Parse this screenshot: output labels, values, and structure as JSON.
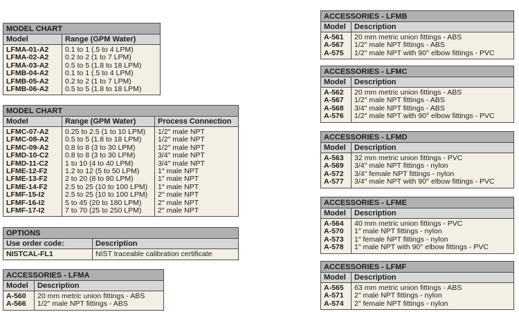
{
  "colors": {
    "title_band": "#b0b0b0",
    "header_band": "#d7d7d7",
    "body_bg": "#f4efe4",
    "border": "#4c4c4c",
    "text": "#1c1c1c",
    "page_bg": "#ffffff"
  },
  "tables": {
    "model_chart_1": {
      "title": "MODEL CHART",
      "headers": [
        "Model",
        "Range (GPM Water)"
      ],
      "rows": [
        [
          "LFMA-01-A2",
          "0.1 to 1 (.5 to 4 LPM)"
        ],
        [
          "LFMA-02-A2",
          "0.2 to 2 (1 to 7 LPM)"
        ],
        [
          "LFMA-03-A2",
          "0.5 to 5 (1.8 to 18 LPM)"
        ],
        [
          "LFMB-04-A2",
          "0.1 to 1 (.5 to 4 LPM)"
        ],
        [
          "LFMB-05-A2",
          "0.2 to 2 (1 to 7 LPM)"
        ],
        [
          "LFMB-06-A2",
          "0.5 to 5 (1.8 to 18 LPM)"
        ]
      ]
    },
    "model_chart_2": {
      "title": "MODEL CHART",
      "headers": [
        "Model",
        "Range (GPM Water)",
        "Process Connection"
      ],
      "rows": [
        [
          "LFMC-07-A2",
          "0.25 to 2.5 (1 to 10 LPM)",
          "1/2″ male NPT"
        ],
        [
          "LFMC-08-A2",
          "0.5 to 5 (1.8 to 18 LPM)",
          "1/2″ male NPT"
        ],
        [
          "LFMC-09-A2",
          "0.8 to 8 (3 to 30 LPM)",
          "1/2″ male NPT"
        ],
        [
          "LFMD-10-C2",
          "0.8 to 8 (3 to 30 LPM)",
          "3/4″ male NPT"
        ],
        [
          "LFMD-11-C2",
          "1 to 10 (4 to 40 LPM)",
          "3/4″ male NPT"
        ],
        [
          "LFME-12-F2",
          "1.2 to 12 (5 to 50 LPM)",
          "1″ male NPT"
        ],
        [
          "LFME-13-F2",
          "2 to 20 (8 to 80 LPM)",
          "1″ male NPT"
        ],
        [
          "LFME-14-F2",
          "2.5 to 25 (10 to 100 LPM)",
          "1″ male NPT"
        ],
        [
          "LFMF-15-I2",
          "2.5 to 25 (10 to 100 LPM)",
          "2″ male NPT"
        ],
        [
          "LFMF-16-I2",
          "5 to 45 (20 to 180 LPM)",
          "2″ male NPT"
        ],
        [
          "LFMF-17-I2",
          "7 to 70 (25 to 250 LPM)",
          "2″ male NPT"
        ]
      ]
    },
    "options": {
      "title": "OPTIONS",
      "headers": [
        "Use order code:",
        "Description"
      ],
      "rows": [
        [
          "NISTCAL-FL1",
          "NIST traceable calibration certificate"
        ]
      ]
    },
    "accessories_lfma": {
      "title": "ACCESSORIES - LFMA",
      "headers": [
        "Model",
        "Description"
      ],
      "rows": [
        [
          "A-560",
          "20 mm metric union fittings - ABS"
        ],
        [
          "A-566",
          "1/2″ male NPT fittings - ABS"
        ]
      ]
    },
    "accessories_lfmb": {
      "title": "ACCESSORIES - LFMB",
      "headers": [
        "Model",
        "Description"
      ],
      "rows": [
        [
          "A-561",
          "20 mm metric union fittings - ABS"
        ],
        [
          "A-567",
          "1/2″ male NPT fittings - ABS"
        ],
        [
          "A-575",
          "1/2″ male NPT with 90° elbow fittings - PVC"
        ]
      ]
    },
    "accessories_lfmc": {
      "title": "ACCESSORIES - LFMC",
      "headers": [
        "Model",
        "Description"
      ],
      "rows": [
        [
          "A-562",
          "20 mm metric union fittings - ABS"
        ],
        [
          "A-567",
          "1/2″ male NPT fittings - ABS"
        ],
        [
          "A-568",
          "3/4″ male NPT fittings - ABS"
        ],
        [
          "A-576",
          "1/2″ male NPT with 90° elbow fittings - PVC"
        ]
      ]
    },
    "accessories_lfmd": {
      "title": "ACCESSORIES - LFMD",
      "headers": [
        "Model",
        "Description"
      ],
      "rows": [
        [
          "A-563",
          "32 mm metric union fittings - PVC"
        ],
        [
          "A-569",
          "3/4″ male NPT fittings - nylon"
        ],
        [
          "A-572",
          "3/4″ female NPT fittings - nylon"
        ],
        [
          "A-577",
          "3/4″ male NPT with 90° elbow fittings - PVC"
        ]
      ]
    },
    "accessories_lfme": {
      "title": "ACCESSORIES - LFME",
      "headers": [
        "Model",
        "Description"
      ],
      "rows": [
        [
          "A-564",
          "40 mm metric union fittings - PVC"
        ],
        [
          "A-570",
          "1″ male NPT fittings - nylon"
        ],
        [
          "A-573",
          "1″ female NPT fittings - nylon"
        ],
        [
          "A-578",
          "1″ male NPT with 90° elbow fittings - PVC"
        ]
      ]
    },
    "accessories_lfmf": {
      "title": "ACCESSORIES - LFMF",
      "headers": [
        "Model",
        "Description"
      ],
      "rows": [
        [
          "A-565",
          "63 mm metric union fittings - ABS"
        ],
        [
          "A-571",
          "2″ male NPT fittings - nylon"
        ],
        [
          "A-574",
          "2″ female NPT fittings - nylon"
        ]
      ]
    }
  }
}
